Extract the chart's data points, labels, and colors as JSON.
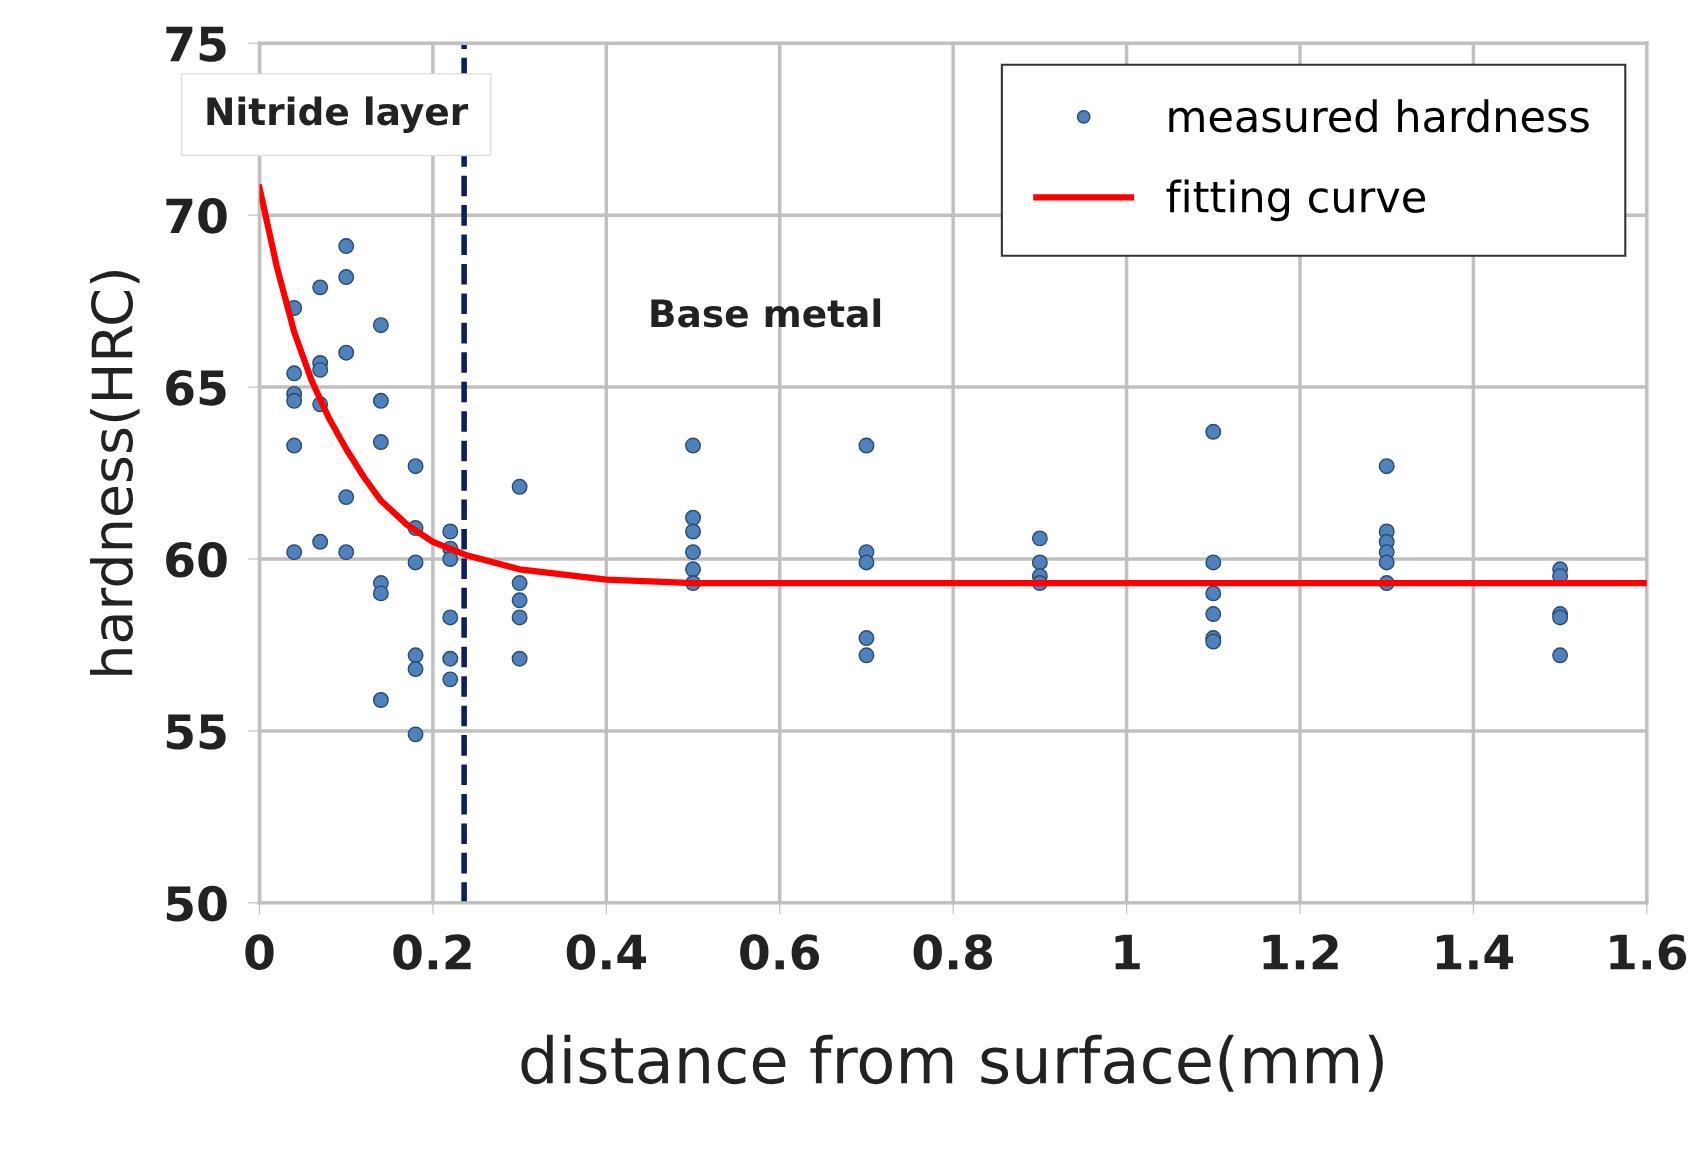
{
  "chart_data": {
    "type": "scatter",
    "xlabel": "distance from surface(mm)",
    "ylabel": "hardness(HRC)",
    "xlim": [
      0,
      1.6
    ],
    "xticks": [
      0,
      0.2,
      0.4,
      0.6,
      0.8,
      1,
      1.2,
      1.4,
      1.6
    ],
    "ylim": [
      50,
      75
    ],
    "yticks": [
      50,
      55,
      60,
      65,
      70,
      75
    ],
    "grid": true,
    "legend": "top right",
    "marker": "circle",
    "series": [
      {
        "name": "measured hardness",
        "color": "#4f81bd",
        "x": [
          0.04,
          0.04,
          0.04,
          0.04,
          0.04,
          0.04,
          0.07,
          0.07,
          0.07,
          0.07,
          0.07,
          0.1,
          0.1,
          0.1,
          0.1,
          0.1,
          0.14,
          0.14,
          0.14,
          0.14,
          0.14,
          0.14,
          0.18,
          0.18,
          0.18,
          0.18,
          0.18,
          0.18,
          0.22,
          0.22,
          0.22,
          0.22,
          0.22,
          0.22,
          0.3,
          0.3,
          0.3,
          0.3,
          0.3,
          0.5,
          0.5,
          0.5,
          0.5,
          0.5,
          0.5,
          0.7,
          0.7,
          0.7,
          0.7,
          0.7,
          0.9,
          0.9,
          0.9,
          0.9,
          1.1,
          1.1,
          1.1,
          1.1,
          1.1,
          1.1,
          1.3,
          1.3,
          1.3,
          1.3,
          1.3,
          1.3,
          1.5,
          1.5,
          1.5,
          1.5,
          1.5
        ],
        "values": [
          67.3,
          65.4,
          64.8,
          64.6,
          63.3,
          60.2,
          67.9,
          65.7,
          65.5,
          64.5,
          60.5,
          69.1,
          68.2,
          66.0,
          61.8,
          60.2,
          66.8,
          64.6,
          63.4,
          59.3,
          59.0,
          55.9,
          62.7,
          60.9,
          59.9,
          57.2,
          56.8,
          54.9,
          60.8,
          60.3,
          60.0,
          58.3,
          57.1,
          56.5,
          62.1,
          59.3,
          58.8,
          58.3,
          57.1,
          63.3,
          61.2,
          60.8,
          60.2,
          59.7,
          59.3,
          63.3,
          60.2,
          59.9,
          57.7,
          57.2,
          60.6,
          59.9,
          59.5,
          59.3,
          63.7,
          59.9,
          59.0,
          58.4,
          57.7,
          57.6,
          62.7,
          60.8,
          60.5,
          60.2,
          59.9,
          59.3,
          59.7,
          59.5,
          58.4,
          58.3,
          57.2
        ]
      },
      {
        "name": "fitting curve",
        "type": "line",
        "color": "#ff0000",
        "line_style": "solid",
        "marker": "none",
        "x": [
          0,
          0.02,
          0.04,
          0.06,
          0.08,
          0.1,
          0.12,
          0.14,
          0.17,
          0.2,
          0.24,
          0.3,
          0.4,
          0.5,
          1.6
        ],
        "values": [
          70.8,
          68.5,
          66.6,
          65.2,
          64.1,
          63.2,
          62.4,
          61.7,
          61.0,
          60.5,
          60.1,
          59.7,
          59.4,
          59.3,
          59.3
        ]
      }
    ],
    "ref_lines": [
      {
        "axis": "x",
        "value": 0.236,
        "color": "#0d1f5c",
        "line_style": "dashed"
      }
    ],
    "annotations": [
      "Nitride layer",
      "Base metal"
    ]
  }
}
